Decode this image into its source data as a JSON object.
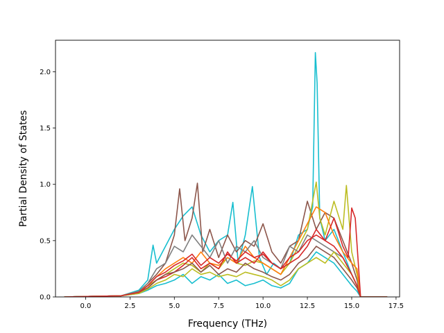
{
  "chart_data": {
    "type": "line",
    "title": "",
    "xlabel": "Frequency (THz)",
    "ylabel": "Partial Density of States",
    "xlim": [
      -1.7,
      17.7
    ],
    "ylim": [
      0,
      2.28
    ],
    "xticks": [
      0.0,
      2.5,
      5.0,
      7.5,
      10.0,
      12.5,
      15.0,
      17.5
    ],
    "xtick_labels": [
      "0.0",
      "2.5",
      "5.0",
      "7.5",
      "10.0",
      "12.5",
      "15.0",
      "17.5"
    ],
    "yticks": [
      0.0,
      0.5,
      1.0,
      1.5,
      2.0
    ],
    "ytick_labels": [
      "0.0",
      "0.5",
      "1.0",
      "1.5",
      "2.0"
    ],
    "grid": false,
    "legend": "none",
    "series": [
      {
        "color": "#17becf",
        "x": [
          -1.2,
          2.0,
          3.0,
          3.5,
          3.8,
          4.0,
          4.5,
          5.0,
          5.5,
          6.0,
          6.5,
          7.0,
          7.5,
          8.0,
          8.3,
          8.6,
          9.0,
          9.4,
          9.8,
          10.2,
          10.6,
          11.0,
          11.5,
          12.0,
          12.5,
          12.8,
          12.95,
          13.05,
          13.2,
          13.5,
          14.0,
          14.5,
          15.0,
          15.3,
          15.5,
          17.0
        ],
        "y": [
          0,
          0.01,
          0.06,
          0.15,
          0.46,
          0.3,
          0.45,
          0.6,
          0.72,
          0.8,
          0.55,
          0.4,
          0.5,
          0.55,
          0.84,
          0.3,
          0.55,
          0.98,
          0.35,
          0.2,
          0.3,
          0.25,
          0.3,
          0.55,
          0.6,
          0.8,
          2.17,
          1.9,
          0.7,
          0.5,
          0.6,
          0.4,
          0.2,
          0.1,
          0,
          0
        ]
      },
      {
        "color": "#8c564b",
        "x": [
          -1.2,
          2.0,
          3.0,
          3.5,
          4.0,
          4.5,
          5.0,
          5.3,
          5.6,
          6.0,
          6.3,
          6.6,
          7.0,
          7.5,
          8.0,
          8.5,
          9.0,
          9.5,
          10.0,
          10.5,
          11.0,
          11.5,
          12.0,
          12.5,
          13.0,
          13.5,
          14.0,
          14.5,
          15.0,
          15.3,
          15.5,
          17.0
        ],
        "y": [
          0,
          0.01,
          0.05,
          0.12,
          0.2,
          0.3,
          0.55,
          0.96,
          0.5,
          0.7,
          1.01,
          0.4,
          0.6,
          0.35,
          0.55,
          0.4,
          0.5,
          0.45,
          0.65,
          0.4,
          0.3,
          0.45,
          0.5,
          0.85,
          0.6,
          0.75,
          0.7,
          0.5,
          0.3,
          0.15,
          0,
          0
        ]
      },
      {
        "color": "#bcbd22",
        "x": [
          -1.2,
          2.0,
          3.0,
          3.5,
          4.0,
          4.5,
          5.0,
          5.5,
          6.0,
          6.5,
          7.0,
          7.5,
          8.0,
          8.5,
          9.0,
          9.5,
          10.0,
          10.5,
          11.0,
          11.5,
          12.0,
          12.5,
          13.0,
          13.2,
          13.5,
          14.0,
          14.5,
          14.7,
          15.0,
          15.3,
          15.5,
          17.0
        ],
        "y": [
          0,
          0.01,
          0.04,
          0.1,
          0.15,
          0.2,
          0.25,
          0.3,
          0.28,
          0.22,
          0.3,
          0.25,
          0.35,
          0.3,
          0.28,
          0.32,
          0.3,
          0.25,
          0.2,
          0.3,
          0.45,
          0.6,
          1.02,
          0.7,
          0.55,
          0.85,
          0.6,
          0.99,
          0.4,
          0.2,
          0,
          0
        ]
      },
      {
        "color": "#ff7f0e",
        "x": [
          -1.2,
          2.0,
          3.0,
          3.5,
          4.0,
          4.5,
          5.0,
          5.5,
          6.0,
          6.5,
          7.0,
          7.5,
          8.0,
          8.5,
          9.0,
          9.5,
          10.0,
          10.5,
          11.0,
          11.5,
          12.0,
          12.5,
          13.0,
          13.5,
          14.0,
          14.5,
          15.0,
          15.3,
          15.5,
          17.0
        ],
        "y": [
          0,
          0.01,
          0.05,
          0.1,
          0.18,
          0.25,
          0.3,
          0.35,
          0.3,
          0.4,
          0.3,
          0.28,
          0.35,
          0.3,
          0.45,
          0.35,
          0.3,
          0.25,
          0.2,
          0.35,
          0.5,
          0.65,
          0.8,
          0.75,
          0.55,
          0.4,
          0.3,
          0.25,
          0,
          0
        ]
      },
      {
        "color": "#d62728",
        "x": [
          -1.2,
          2.0,
          3.0,
          3.5,
          4.0,
          4.5,
          5.0,
          5.5,
          6.0,
          6.5,
          7.0,
          7.5,
          8.0,
          8.5,
          9.0,
          9.5,
          10.0,
          10.5,
          11.0,
          11.5,
          12.0,
          12.5,
          13.0,
          13.5,
          14.0,
          14.5,
          14.8,
          15.0,
          15.2,
          15.5,
          17.0
        ],
        "y": [
          0,
          0.01,
          0.04,
          0.08,
          0.15,
          0.18,
          0.22,
          0.28,
          0.35,
          0.25,
          0.3,
          0.25,
          0.4,
          0.3,
          0.35,
          0.3,
          0.4,
          0.3,
          0.25,
          0.3,
          0.35,
          0.45,
          0.6,
          0.5,
          0.7,
          0.45,
          0.35,
          0.79,
          0.7,
          0,
          0
        ]
      },
      {
        "color": "#7f7f7f",
        "x": [
          -1.2,
          2.0,
          3.0,
          3.5,
          4.0,
          4.5,
          5.0,
          5.5,
          6.0,
          6.5,
          7.0,
          7.5,
          8.0,
          8.5,
          9.0,
          9.5,
          10.0,
          10.5,
          11.0,
          11.5,
          12.0,
          12.5,
          13.0,
          13.5,
          14.0,
          14.5,
          15.0,
          15.3,
          15.5,
          17.0
        ],
        "y": [
          0,
          0.01,
          0.05,
          0.12,
          0.25,
          0.3,
          0.45,
          0.4,
          0.55,
          0.45,
          0.35,
          0.5,
          0.3,
          0.45,
          0.4,
          0.5,
          0.35,
          0.3,
          0.25,
          0.45,
          0.4,
          0.55,
          0.5,
          0.45,
          0.4,
          0.35,
          0.2,
          0.1,
          0,
          0
        ]
      },
      {
        "color": "#17becf",
        "x": [
          -1.2,
          2.0,
          3.0,
          3.5,
          4.0,
          4.5,
          5.0,
          5.5,
          6.0,
          6.5,
          7.0,
          7.5,
          8.0,
          8.5,
          9.0,
          9.5,
          10.0,
          10.5,
          11.0,
          11.5,
          12.0,
          12.5,
          13.0,
          13.5,
          14.0,
          14.5,
          15.0,
          15.3,
          15.5,
          17.0
        ],
        "y": [
          0,
          0.01,
          0.03,
          0.06,
          0.1,
          0.12,
          0.15,
          0.2,
          0.12,
          0.18,
          0.15,
          0.2,
          0.12,
          0.15,
          0.1,
          0.12,
          0.15,
          0.1,
          0.08,
          0.12,
          0.25,
          0.3,
          0.4,
          0.35,
          0.3,
          0.2,
          0.1,
          0.05,
          0,
          0
        ]
      },
      {
        "color": "#8c564b",
        "x": [
          -1.2,
          2.0,
          3.0,
          3.5,
          4.0,
          4.5,
          5.0,
          5.5,
          6.0,
          6.5,
          7.0,
          7.5,
          8.0,
          8.5,
          9.0,
          9.5,
          10.0,
          10.5,
          11.0,
          11.5,
          12.0,
          12.5,
          13.0,
          13.5,
          14.0,
          14.5,
          15.0,
          15.3,
          15.5,
          17.0
        ],
        "y": [
          0,
          0.01,
          0.04,
          0.08,
          0.15,
          0.2,
          0.22,
          0.25,
          0.3,
          0.22,
          0.28,
          0.2,
          0.25,
          0.22,
          0.3,
          0.25,
          0.22,
          0.18,
          0.15,
          0.2,
          0.3,
          0.35,
          0.45,
          0.4,
          0.35,
          0.25,
          0.15,
          0.08,
          0,
          0
        ]
      },
      {
        "color": "#bcbd22",
        "x": [
          -1.2,
          2.0,
          3.0,
          3.5,
          4.0,
          4.5,
          5.0,
          5.5,
          6.0,
          6.5,
          7.0,
          7.5,
          8.0,
          8.5,
          9.0,
          9.5,
          10.0,
          10.5,
          11.0,
          11.5,
          12.0,
          12.5,
          13.0,
          13.5,
          14.0,
          14.5,
          15.0,
          15.3,
          15.5,
          17.0
        ],
        "y": [
          0,
          0.01,
          0.03,
          0.07,
          0.12,
          0.15,
          0.2,
          0.18,
          0.25,
          0.2,
          0.22,
          0.18,
          0.2,
          0.18,
          0.22,
          0.2,
          0.18,
          0.15,
          0.1,
          0.15,
          0.25,
          0.3,
          0.35,
          0.3,
          0.4,
          0.3,
          0.2,
          0.1,
          0,
          0
        ]
      },
      {
        "color": "#d62728",
        "x": [
          -1.2,
          2.0,
          3.0,
          3.5,
          4.0,
          4.5,
          5.0,
          5.5,
          6.0,
          6.5,
          7.0,
          7.5,
          8.0,
          8.5,
          9.0,
          9.5,
          10.0,
          10.5,
          11.0,
          11.5,
          12.0,
          12.5,
          13.0,
          13.5,
          14.0,
          14.5,
          15.0,
          15.3,
          15.5,
          17.0
        ],
        "y": [
          0,
          0.01,
          0.04,
          0.1,
          0.18,
          0.22,
          0.28,
          0.32,
          0.38,
          0.28,
          0.35,
          0.3,
          0.38,
          0.32,
          0.4,
          0.35,
          0.38,
          0.3,
          0.25,
          0.35,
          0.4,
          0.5,
          0.55,
          0.5,
          0.45,
          0.35,
          0.2,
          0.1,
          0,
          0
        ]
      }
    ]
  }
}
